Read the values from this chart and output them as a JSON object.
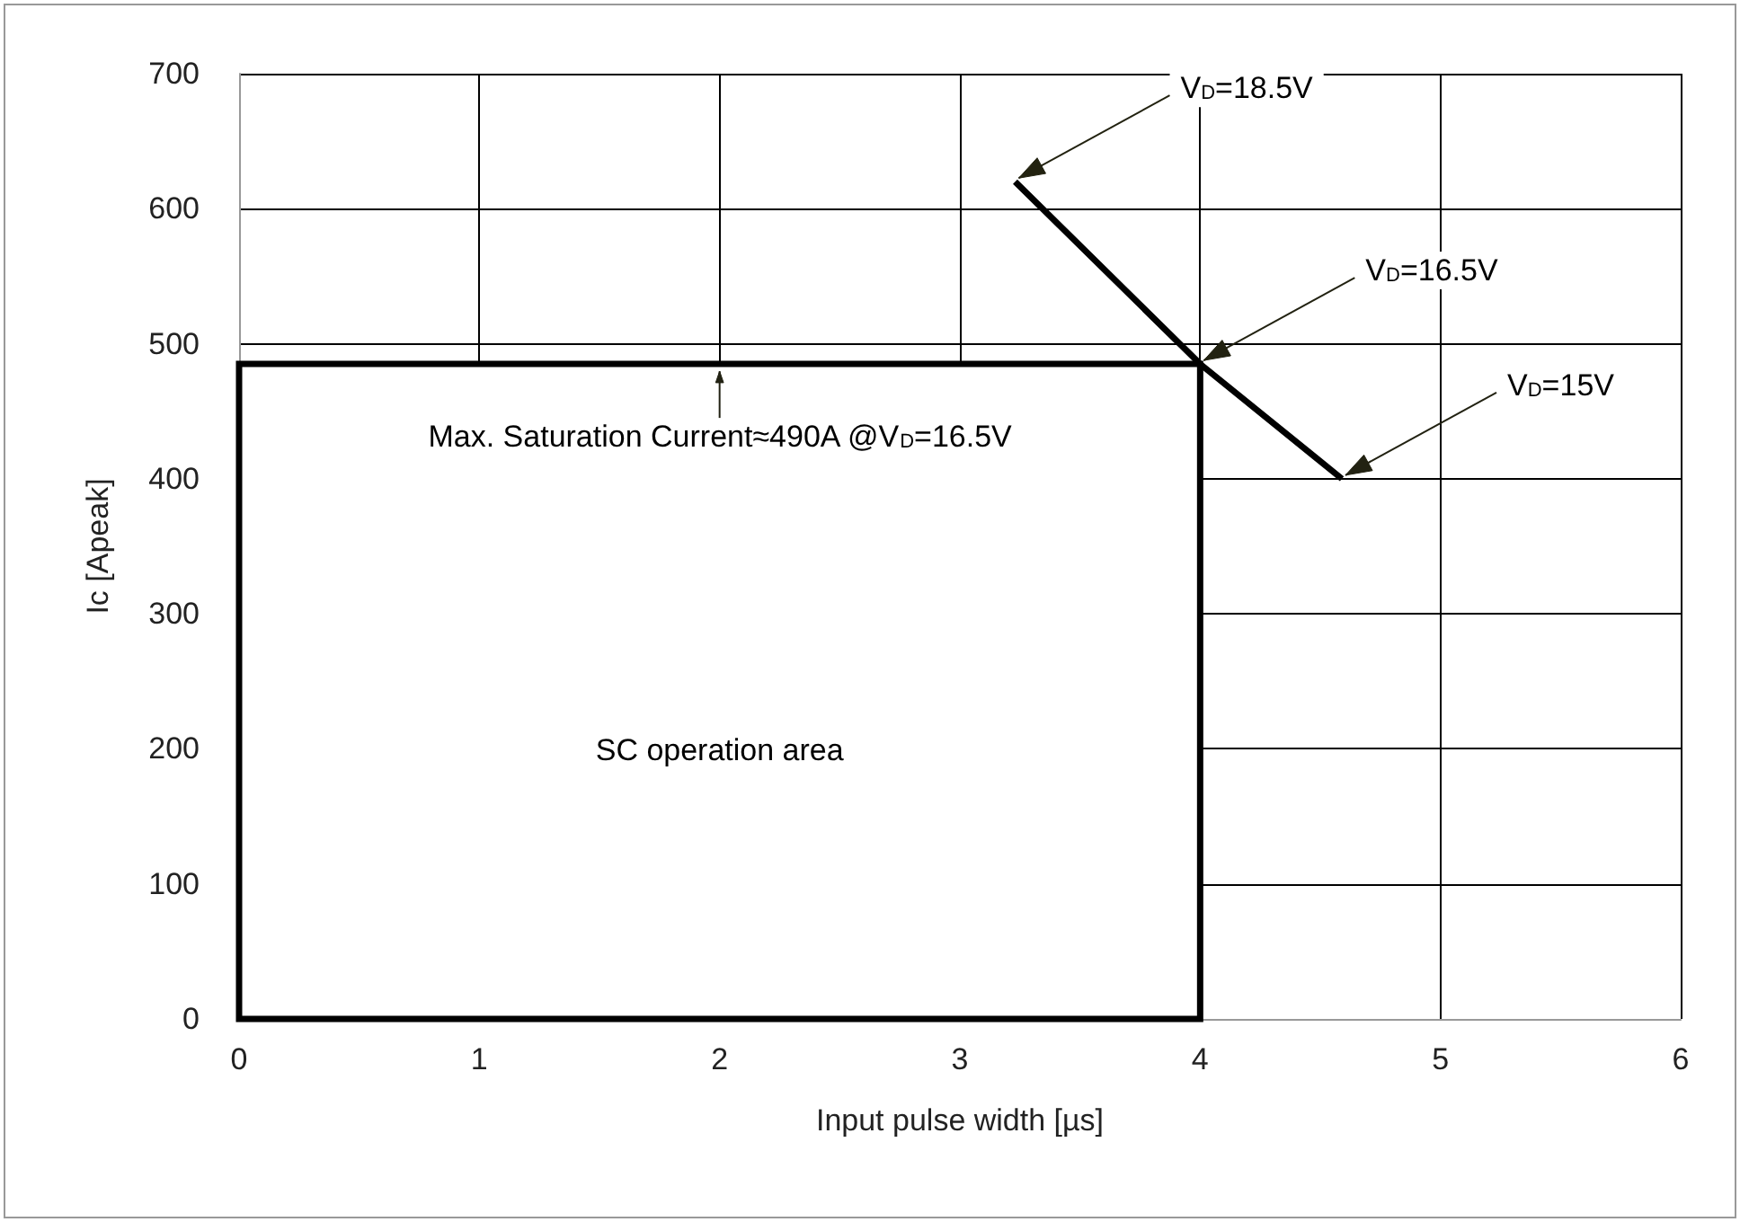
{
  "chart_data": {
    "type": "line",
    "xlabel": "Input pulse width [µs]",
    "ylabel": "Ic [Apeak]",
    "series": [
      {
        "type": "histogram",
        "bins": [
          0,
          4
        ],
        "values": [
          485
        ],
        "color": "#ffffff"
      },
      {
        "x": [
          3.23,
          4,
          4.59
        ],
        "values": [
          620,
          485,
          400
        ],
        "color": "#000000"
      }
    ],
    "xlim": [
      0,
      6
    ],
    "xticks": [
      0,
      1,
      2,
      3,
      4,
      5,
      6
    ],
    "ylim": [
      0,
      700
    ],
    "yticks": [
      0,
      100,
      200,
      300,
      400,
      500,
      600,
      700
    ],
    "grid": true,
    "annotations": [
      {
        "text": "V$_{D}$=18.5V",
        "x": 3.23,
        "y": 620
      },
      {
        "text": "V$_{D}$=16.5V",
        "x": 4,
        "y": 485
      },
      {
        "text": "V$_{D}$=15V",
        "x": 4.59,
        "y": 400
      },
      {
        "text": "Max. Saturation Current≈490A @V$_{D}$=16.5V",
        "x": 2,
        "y": 485
      },
      "SC operation area"
    ]
  }
}
